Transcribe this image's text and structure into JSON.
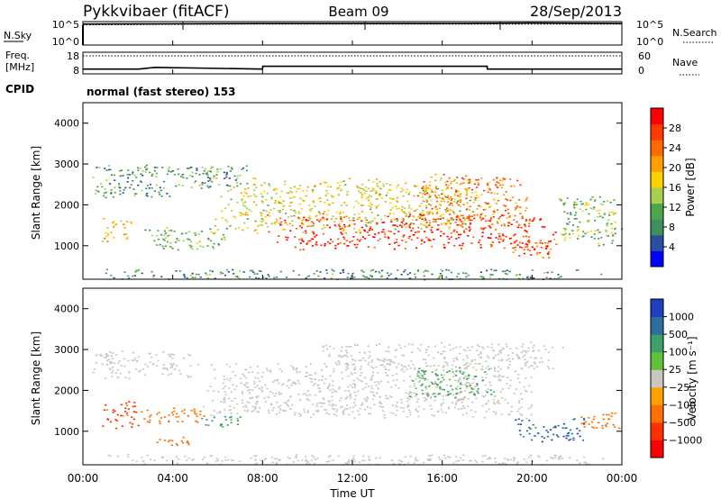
{
  "header": {
    "radar": "Pykkvibaer (fitACF)",
    "beam": "Beam 09",
    "date": "28/Sep/2013"
  },
  "noise_panel": {
    "left_label": "N.Sky",
    "right_label": "N.Search",
    "left_ticks": [
      "10^5",
      "10^0"
    ],
    "right_ticks": [
      "10^5",
      "10^0"
    ]
  },
  "freq_panel": {
    "left_label_1": "Freq.",
    "left_label_2": "[MHz]",
    "right_label": "Nave",
    "left_ticks": [
      "18",
      "8"
    ],
    "right_ticks": [
      "60",
      "0"
    ]
  },
  "cpid": {
    "label": "CPID",
    "value": "normal (fast stereo) 153"
  },
  "axes": {
    "x_label": "Time UT",
    "x_ticks": [
      "00:00",
      "04:00",
      "08:00",
      "12:00",
      "16:00",
      "20:00",
      "00:00"
    ],
    "y_label": "Slant Range [km]",
    "y_ticks": [
      "1000",
      "2000",
      "3000",
      "4000"
    ]
  },
  "power_colorbar": {
    "title": "Power [dB]",
    "ticks": [
      "4",
      "8",
      "12",
      "16",
      "20",
      "24",
      "28"
    ],
    "colors": [
      "#0000ff",
      "#2a4fa0",
      "#3f8f5f",
      "#4aa84a",
      "#a8d050",
      "#ffd000",
      "#ffa000",
      "#ff6a00",
      "#ff3a00",
      "#ff0000"
    ]
  },
  "velocity_colorbar": {
    "title": "Velocity [m s⁻¹]",
    "ticks": [
      "1000",
      "500",
      "100",
      "25",
      "−25",
      "−100",
      "−500",
      "−1000"
    ],
    "colors": [
      "#1f3fbf",
      "#2c6f9e",
      "#3d9f6a",
      "#5fc03a",
      "#c8c8c0",
      "#ffa000",
      "#ff7000",
      "#ff3000",
      "#ff0000"
    ]
  },
  "chart_data": [
    {
      "type": "line",
      "title": "Pykkvibaer (fitACF) Beam 09 28/Sep/2013",
      "xlabel": "Time UT",
      "x_range": [
        "00:00",
        "24:00"
      ],
      "series": [
        {
          "name": "N.Sky",
          "scale": "log",
          "ylim": [
            1,
            100000
          ],
          "x": [
            0,
            4,
            8,
            12,
            16,
            20,
            24
          ],
          "values": [
            30000,
            35000,
            40000,
            40000,
            40000,
            50000,
            40000
          ]
        },
        {
          "name": "N.Search",
          "scale": "log",
          "ylim": [
            1,
            100000
          ],
          "x": [
            0,
            4,
            8,
            12,
            16,
            20,
            24
          ],
          "values": [
            20000,
            25000,
            30000,
            30000,
            30000,
            30000,
            30000
          ]
        }
      ]
    },
    {
      "type": "line",
      "xlabel": "Time UT",
      "x_range": [
        "00:00",
        "24:00"
      ],
      "series": [
        {
          "name": "Freq. [MHz]",
          "ylim": [
            8,
            18
          ],
          "x": [
            0,
            2.5,
            3.2,
            8,
            8.01,
            18,
            18.01,
            24
          ],
          "values": [
            10.2,
            10.2,
            11.0,
            10.2,
            11.5,
            11.5,
            10.2,
            10.2
          ]
        },
        {
          "name": "Nave",
          "ylim": [
            0,
            60
          ],
          "x": [
            0,
            24
          ],
          "values": [
            50,
            50
          ]
        }
      ]
    },
    {
      "type": "heatmap",
      "title": "Power [dB]",
      "xlabel": "Time UT",
      "ylabel": "Slant Range [km]",
      "x_range": [
        0,
        24
      ],
      "ylim": [
        180,
        4500
      ],
      "color_scale": {
        "min": 0,
        "max": 30,
        "ticks": [
          4,
          8,
          12,
          16,
          20,
          24,
          28
        ]
      },
      "regions": [
        {
          "t": [
            0.2,
            4.0
          ],
          "r": [
            2150,
            2500
          ],
          "v": 9
        },
        {
          "t": [
            0.3,
            7.5
          ],
          "r": [
            2400,
            3000
          ],
          "v": 9
        },
        {
          "t": [
            0.8,
            2.3
          ],
          "r": [
            1100,
            1700
          ],
          "v": 18
        },
        {
          "t": [
            2.5,
            6.8
          ],
          "r": [
            900,
            1500
          ],
          "v": 12
        },
        {
          "t": [
            5.5,
            18.0
          ],
          "r": [
            1300,
            2700
          ],
          "v": 16
        },
        {
          "t": [
            8.0,
            21.5
          ],
          "r": [
            900,
            1800
          ],
          "v": 26
        },
        {
          "t": [
            14.5,
            20.0
          ],
          "r": [
            1500,
            2800
          ],
          "v": 22
        },
        {
          "t": [
            19.0,
            21.0
          ],
          "r": [
            650,
            1200
          ],
          "v": 24
        },
        {
          "t": [
            21.0,
            24.0
          ],
          "r": [
            1000,
            2300
          ],
          "v": 12
        },
        {
          "t": [
            0.1,
            24.0
          ],
          "r": [
            180,
            450
          ],
          "v": 8
        }
      ]
    },
    {
      "type": "heatmap",
      "title": "Velocity [m s⁻¹]",
      "xlabel": "Time UT",
      "ylabel": "Slant Range [km]",
      "x_range": [
        0,
        24
      ],
      "ylim": [
        180,
        4500
      ],
      "color_scale": {
        "ticks": [
          1000,
          500,
          100,
          25,
          -25,
          -100,
          -500,
          -1000
        ]
      },
      "regions": [
        {
          "t": [
            0.2,
            5.0
          ],
          "r": [
            2300,
            3000
          ],
          "v": 0
        },
        {
          "t": [
            0.8,
            2.5
          ],
          "r": [
            1050,
            1800
          ],
          "v": -700
        },
        {
          "t": [
            2.3,
            5.5
          ],
          "r": [
            1200,
            1600
          ],
          "v": -200
        },
        {
          "t": [
            5.0,
            7.0
          ],
          "r": [
            1100,
            1400
          ],
          "v": 150
        },
        {
          "t": [
            3.0,
            4.8
          ],
          "r": [
            650,
            900
          ],
          "v": -200
        },
        {
          "t": [
            5.0,
            20.5
          ],
          "r": [
            1300,
            2700
          ],
          "v": 0
        },
        {
          "t": [
            10.0,
            21.5
          ],
          "r": [
            2500,
            3200
          ],
          "v": 0
        },
        {
          "t": [
            14.5,
            18.5
          ],
          "r": [
            1800,
            2600
          ],
          "v": 120
        },
        {
          "t": [
            19.0,
            22.5
          ],
          "r": [
            750,
            1350
          ],
          "v": 800
        },
        {
          "t": [
            22.0,
            24.0
          ],
          "r": [
            1050,
            1500
          ],
          "v": -300
        },
        {
          "t": [
            0.1,
            24.0
          ],
          "r": [
            180,
            450
          ],
          "v": 0
        }
      ]
    }
  ]
}
